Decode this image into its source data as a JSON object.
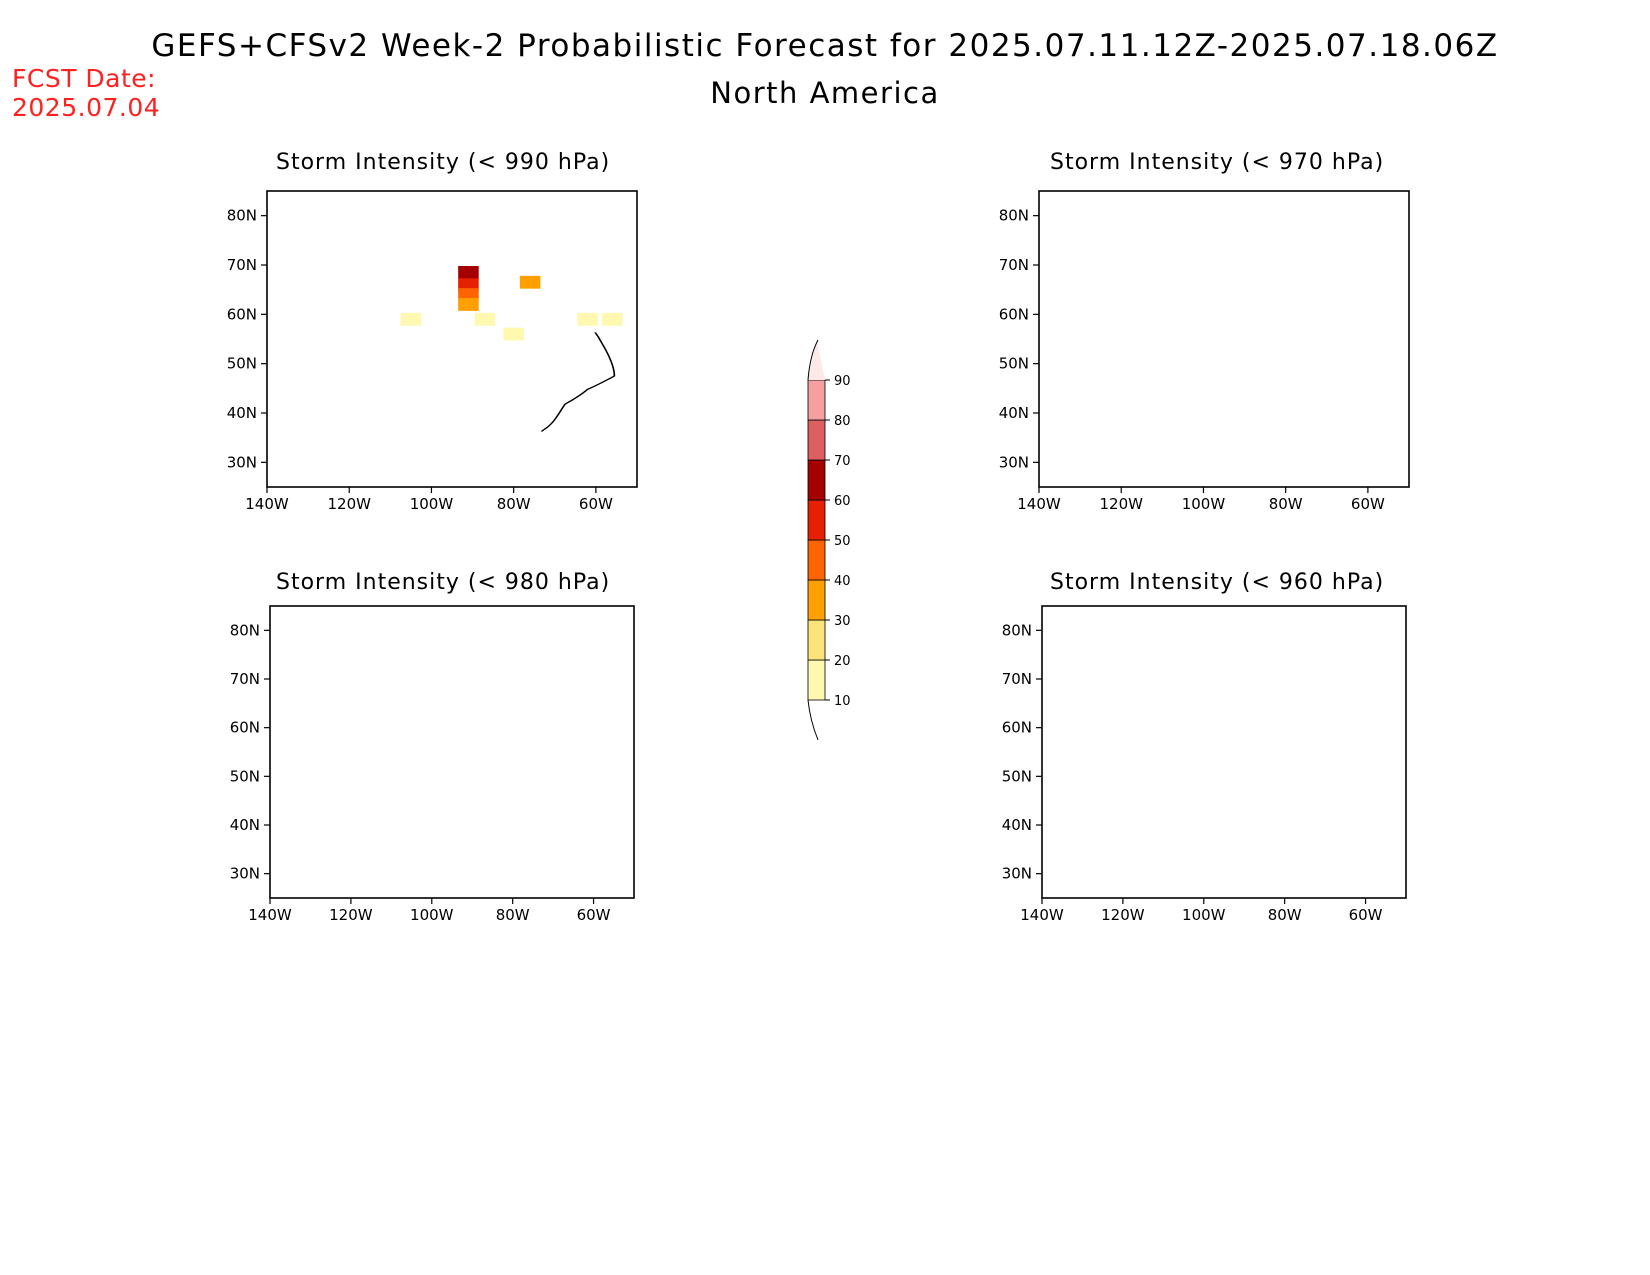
{
  "header": {
    "title": "GEFS+CFSv2 Week-2 Probabilistic Forecast for 2025.07.11.12Z-2025.07.18.06Z",
    "subtitle": "North America",
    "fcst_label": "FCST Date:",
    "fcst_date": "2025.07.04"
  },
  "panels": [
    {
      "title": "Storm Intensity (< 990 hPa)"
    },
    {
      "title": "Storm Intensity (< 970 hPa)"
    },
    {
      "title": "Storm Intensity (< 980 hPa)"
    },
    {
      "title": "Storm Intensity (< 960 hPa)"
    }
  ],
  "axes": {
    "lon_labels": [
      "140W",
      "120W",
      "100W",
      "80W",
      "60W"
    ],
    "lat_labels": [
      "80N",
      "70N",
      "60N",
      "50N",
      "40N",
      "30N"
    ]
  },
  "colorbar": {
    "levels": [
      "10",
      "20",
      "30",
      "40",
      "50",
      "60",
      "70",
      "80",
      "90"
    ],
    "colors": [
      "#fff8b0",
      "#fde47a",
      "#ff9f00",
      "#ff6400",
      "#e62000",
      "#a50000",
      "#dd6060",
      "#f5a0a0",
      "#ffe8e8"
    ]
  },
  "chart_data": {
    "type": "heatmap",
    "units": "percent probability",
    "extent": {
      "lon": [
        -140,
        -50
      ],
      "lat": [
        25,
        85
      ]
    },
    "panel_990hPa_cells": [
      {
        "lon": -91,
        "lat": 68.5,
        "value": 65
      },
      {
        "lon": -91,
        "lat": 66,
        "value": 55
      },
      {
        "lon": -91,
        "lat": 64,
        "value": 45
      },
      {
        "lon": -91,
        "lat": 62,
        "value": 35
      },
      {
        "lon": -76,
        "lat": 66.5,
        "value": 35
      },
      {
        "lon": -105,
        "lat": 59,
        "value": 15
      },
      {
        "lon": -87,
        "lat": 59,
        "value": 15
      },
      {
        "lon": -80,
        "lat": 56,
        "value": 15
      },
      {
        "lon": -62,
        "lat": 59,
        "value": 15
      },
      {
        "lon": -56,
        "lat": 59,
        "value": 15
      }
    ],
    "panel_970hPa_cells": [],
    "panel_980hPa_cells": [],
    "panel_960hPa_cells": []
  }
}
